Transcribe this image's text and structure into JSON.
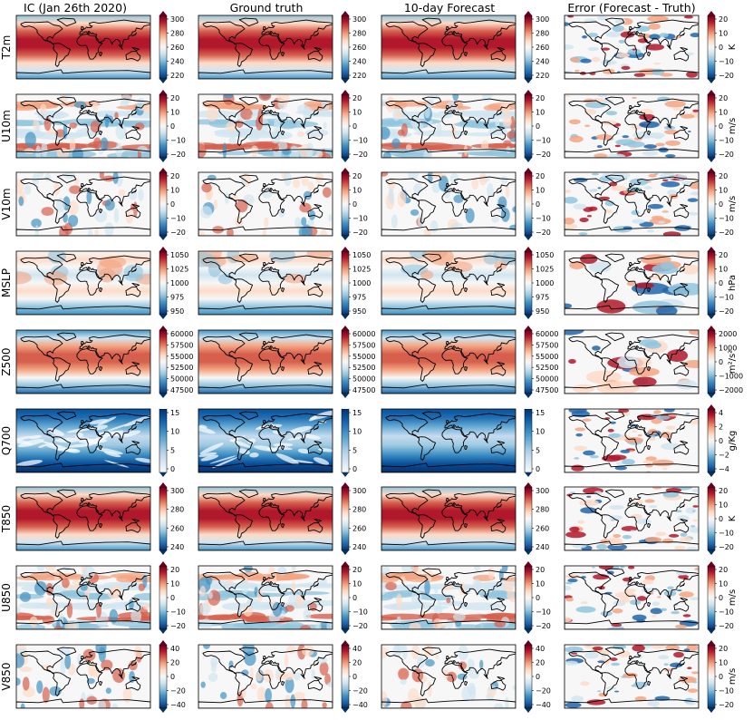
{
  "figure": {
    "columns": [
      "IC (Jan 26th 2020)",
      "Ground truth",
      "10-day Forecast",
      "Error (Forecast - Truth)"
    ],
    "rows": [
      "T2m",
      "U10m",
      "V10m",
      "MSLP",
      "Z500",
      "Q700",
      "T850",
      "U850",
      "V850"
    ]
  },
  "colors": {
    "rdbu": [
      "#67001f",
      "#b2182b",
      "#d6604d",
      "#f4a582",
      "#fddbc7",
      "#f7f7f7",
      "#d1e5f0",
      "#92c5de",
      "#4393c3",
      "#2166ac",
      "#053061"
    ],
    "blues": [
      "#f7fbff",
      "#deebf7",
      "#c6dbef",
      "#9ecae1",
      "#6baed6",
      "#4292c6",
      "#2171b5",
      "#08519c",
      "#08306b"
    ],
    "coast": "#000000"
  },
  "chart_data": [
    {
      "type": "heatmap",
      "row": "T2m",
      "colorbar_ticks": [
        "300",
        "280",
        "260",
        "240",
        "220"
      ],
      "colorbar_range": [
        220,
        300
      ],
      "error_ticks": [
        "20",
        "10",
        "0",
        "−10",
        "−20"
      ],
      "error_range": [
        -20,
        20
      ],
      "unit": "K",
      "colormap": "RdBu_r",
      "pattern": "temperature"
    },
    {
      "type": "heatmap",
      "row": "U10m",
      "colorbar_ticks": [
        "20",
        "10",
        "0",
        "−10",
        "−20"
      ],
      "colorbar_range": [
        -20,
        20
      ],
      "error_ticks": [
        "20",
        "10",
        "0",
        "−10",
        "−20"
      ],
      "error_range": [
        -20,
        20
      ],
      "unit": "m/s",
      "colormap": "RdBu_r",
      "pattern": "zonal"
    },
    {
      "type": "heatmap",
      "row": "V10m",
      "colorbar_ticks": [
        "20",
        "10",
        "0",
        "−10",
        "−20"
      ],
      "colorbar_range": [
        -20,
        20
      ],
      "error_ticks": [
        "20",
        "10",
        "0",
        "−10",
        "−20"
      ],
      "error_range": [
        -20,
        20
      ],
      "unit": "m/s",
      "colormap": "RdBu_r",
      "pattern": "meridional"
    },
    {
      "type": "heatmap",
      "row": "MSLP",
      "colorbar_ticks": [
        "1050",
        "1025",
        "1000",
        "975",
        "950"
      ],
      "colorbar_range": [
        950,
        1050
      ],
      "error_ticks": [
        "20",
        "10",
        "0",
        "−10",
        "−20"
      ],
      "error_range": [
        -20,
        20
      ],
      "unit": "hPa",
      "colormap": "RdBu_r",
      "pattern": "pressure"
    },
    {
      "type": "heatmap",
      "row": "Z500",
      "colorbar_ticks": [
        "60000",
        "57500",
        "55000",
        "52500",
        "50000",
        "47500"
      ],
      "colorbar_range": [
        47500,
        60000
      ],
      "error_ticks": [
        "2000",
        "1000",
        "0",
        "−1000",
        "−2000"
      ],
      "error_range": [
        -2000,
        2000
      ],
      "unit": "m²/s²",
      "colormap": "RdBu_r",
      "pattern": "geopotential"
    },
    {
      "type": "heatmap",
      "row": "Q700",
      "colorbar_ticks": [
        "15",
        "10",
        "5",
        "0"
      ],
      "colorbar_range": [
        0,
        15
      ],
      "error_ticks": [
        "4",
        "2",
        "0",
        "−2",
        "−4"
      ],
      "error_range": [
        -4,
        4
      ],
      "unit": "g/Kg",
      "colormap": "Blues_r",
      "pattern": "humidity"
    },
    {
      "type": "heatmap",
      "row": "T850",
      "colorbar_ticks": [
        "300",
        "280",
        "260",
        "240"
      ],
      "colorbar_range": [
        240,
        300
      ],
      "error_ticks": [
        "20",
        "10",
        "0",
        "−10",
        "−20"
      ],
      "error_range": [
        -20,
        20
      ],
      "unit": "K",
      "colormap": "RdBu_r",
      "pattern": "temperature"
    },
    {
      "type": "heatmap",
      "row": "U850",
      "colorbar_ticks": [
        "20",
        "10",
        "0",
        "−10",
        "−20"
      ],
      "colorbar_range": [
        -20,
        20
      ],
      "error_ticks": [
        "20",
        "10",
        "0",
        "−10",
        "−20"
      ],
      "error_range": [
        -20,
        20
      ],
      "unit": "m/s",
      "colormap": "RdBu_r",
      "pattern": "zonal"
    },
    {
      "type": "heatmap",
      "row": "V850",
      "colorbar_ticks": [
        "40",
        "20",
        "0",
        "−20",
        "−40"
      ],
      "colorbar_range": [
        -40,
        40
      ],
      "error_ticks": [
        "20",
        "10",
        "0",
        "−10",
        "−20"
      ],
      "error_range": [
        -20,
        20
      ],
      "unit": "m/s",
      "colormap": "RdBu_r",
      "pattern": "meridional"
    }
  ]
}
